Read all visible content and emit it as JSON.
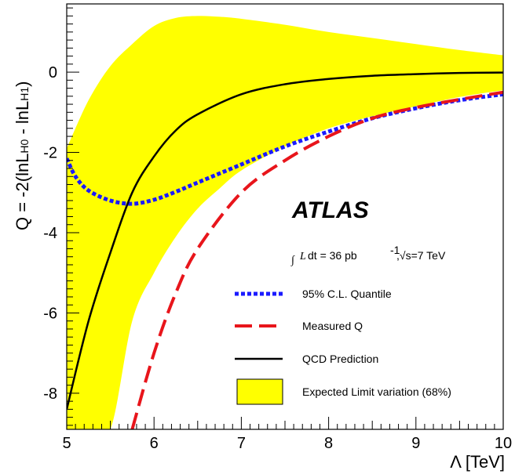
{
  "chart_data": {
    "type": "line",
    "title": "",
    "xlabel": "Λ [TeV]",
    "ylabel": "Q = -2(lnL_H0 - lnL_H1)",
    "xlim": [
      5,
      10
    ],
    "ylim": [
      -8.9,
      1.7
    ],
    "x_ticks": [
      "5",
      "6",
      "7",
      "8",
      "9",
      "10"
    ],
    "y_ticks": [
      "-8",
      "-6",
      "-4",
      "-2",
      "0"
    ],
    "grid": false,
    "legend_position": "bottom-right",
    "colors": {
      "quantile": "#1a1aff",
      "measured": "#e8151b",
      "qcd": "#000000",
      "band_fill": "#ffff00",
      "band_edge": "#000000"
    },
    "band": {
      "name": "Expected Limit variation (68%)",
      "x": [
        5.0,
        5.25,
        5.5,
        5.75,
        6.0,
        6.25,
        6.5,
        6.75,
        7.0,
        7.5,
        8.0,
        8.5,
        9.0,
        9.5,
        10.0
      ],
      "upper": [
        -1.9,
        -0.7,
        0.15,
        0.7,
        1.15,
        1.35,
        1.4,
        1.38,
        1.33,
        1.18,
        1.0,
        0.85,
        0.7,
        0.55,
        0.42
      ],
      "lower": [
        -8.9,
        -8.9,
        -8.9,
        -6.2,
        -5.0,
        -4.1,
        -3.4,
        -2.9,
        -2.45,
        -1.85,
        -1.4,
        -1.1,
        -0.85,
        -0.62,
        -0.45
      ]
    },
    "series": [
      {
        "name": "95% C.L. Quantile",
        "x": [
          5.0,
          5.1,
          5.25,
          5.5,
          5.75,
          6.0,
          6.25,
          6.5,
          7.0,
          7.5,
          8.0,
          8.5,
          9.0,
          9.5,
          10.0
        ],
        "y": [
          -2.15,
          -2.6,
          -2.95,
          -3.2,
          -3.28,
          -3.18,
          -2.98,
          -2.75,
          -2.3,
          -1.85,
          -1.48,
          -1.15,
          -0.9,
          -0.7,
          -0.55
        ]
      },
      {
        "name": "Measured Q",
        "x": [
          5.75,
          6.0,
          6.25,
          6.5,
          7.0,
          7.5,
          8.0,
          8.5,
          9.0,
          9.5,
          10.0
        ],
        "y": [
          -8.9,
          -7.0,
          -5.5,
          -4.4,
          -3.0,
          -2.2,
          -1.6,
          -1.15,
          -0.88,
          -0.68,
          -0.5
        ]
      },
      {
        "name": "QCD Prediction",
        "x": [
          5.0,
          5.25,
          5.5,
          5.75,
          6.0,
          6.25,
          6.5,
          7.0,
          7.5,
          8.0,
          8.5,
          9.0,
          9.5,
          10.0
        ],
        "y": [
          -8.4,
          -6.2,
          -4.5,
          -3.0,
          -2.1,
          -1.45,
          -1.05,
          -0.55,
          -0.3,
          -0.17,
          -0.09,
          -0.05,
          -0.02,
          -0.01
        ]
      }
    ],
    "annotations": {
      "experiment": "ATLAS",
      "lumi_integral": "∫",
      "lumi_L": "L",
      "lumi_dt": "dt = 36 pb",
      "lumi_exp": "-1",
      "lumi_energy": ",√s=7 TeV"
    }
  }
}
